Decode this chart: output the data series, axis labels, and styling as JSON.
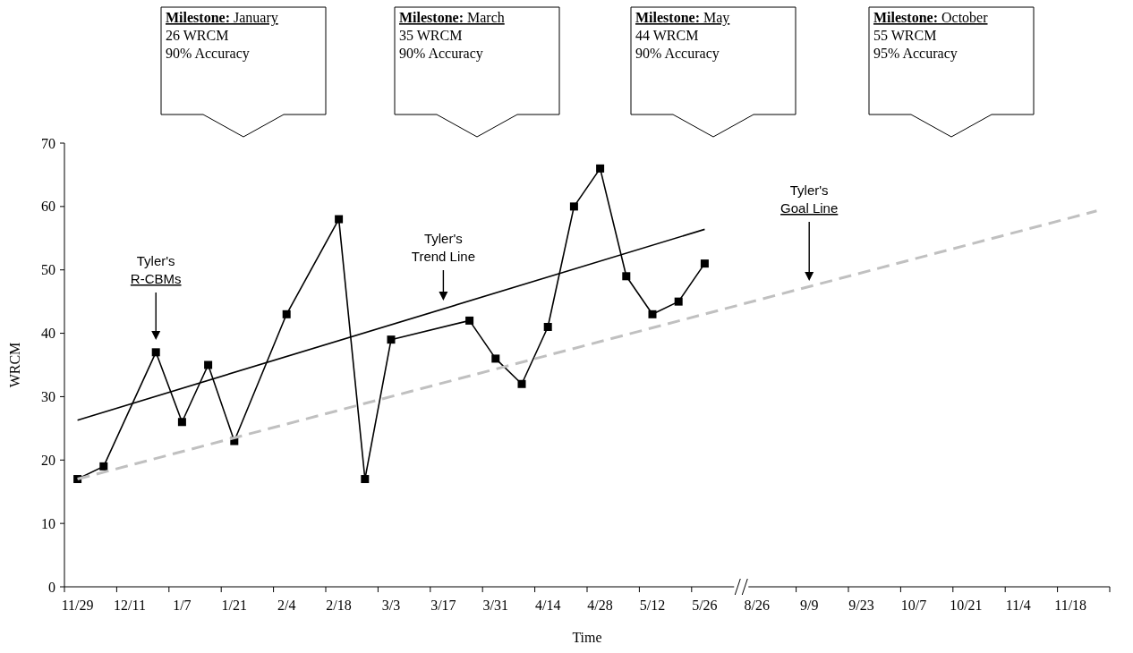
{
  "chart_data": {
    "type": "line",
    "xlabel": "Time",
    "ylabel": "WRCM",
    "ylim": [
      0,
      70
    ],
    "yticks": [
      0,
      10,
      20,
      30,
      40,
      50,
      60,
      70
    ],
    "categories": [
      "11/29",
      null,
      "12/11",
      null,
      "1/7",
      null,
      "1/21",
      null,
      "2/4",
      null,
      "2/18",
      null,
      "3/3",
      null,
      "3/17",
      null,
      "3/31",
      null,
      "4/14",
      null,
      "4/28",
      null,
      "5/12",
      null,
      "5/26",
      null,
      "8/26",
      null,
      "9/9",
      null,
      "9/23",
      null,
      "10/7",
      null,
      "10/21",
      null,
      "11/4",
      null,
      "11/18",
      null
    ],
    "grid": false,
    "series": [
      {
        "color": "#000000",
        "marker": "square",
        "line_style": "solid",
        "values": [
          17,
          19,
          null,
          37,
          26,
          35,
          23,
          null,
          43,
          null,
          58,
          17,
          39,
          null,
          null,
          42,
          36,
          32,
          41,
          60,
          66,
          49,
          43,
          45,
          51,
          null,
          null,
          null,
          null,
          null,
          null,
          null,
          null,
          null,
          null,
          null,
          null,
          null,
          null,
          null
        ]
      },
      {
        "color": "#000000",
        "marker": "none",
        "line_style": "solid",
        "values": [
          26.3,
          null,
          null,
          null,
          null,
          null,
          null,
          null,
          null,
          null,
          null,
          null,
          null,
          null,
          null,
          null,
          null,
          null,
          null,
          null,
          null,
          null,
          null,
          null,
          56.4,
          null,
          null,
          null,
          null,
          null,
          null,
          null,
          null,
          null,
          null,
          null,
          null,
          null,
          null,
          null
        ]
      },
      {
        "color": "#c0c0c0",
        "marker": "none",
        "line_style": "dashed",
        "values": [
          17,
          null,
          null,
          null,
          null,
          null,
          null,
          null,
          null,
          null,
          null,
          null,
          null,
          null,
          null,
          null,
          null,
          null,
          null,
          null,
          null,
          null,
          null,
          null,
          null,
          null,
          null,
          null,
          null,
          null,
          null,
          null,
          null,
          null,
          null,
          null,
          null,
          null,
          null,
          59.3
        ]
      }
    ],
    "annotations": [
      "Tyler's\nR-CBMs",
      "Tyler's\nTrend Line",
      "Tyler's\nGoal Line",
      "Milestone: January\n26 WRCM\n90% Accuracy",
      "Milestone: March\n35 WRCM\n90% Accuracy",
      "Milestone: May\n44 WRCM\n90% Accuracy",
      "Milestone: October\n55 WRCM\n95% Accuracy"
    ]
  }
}
